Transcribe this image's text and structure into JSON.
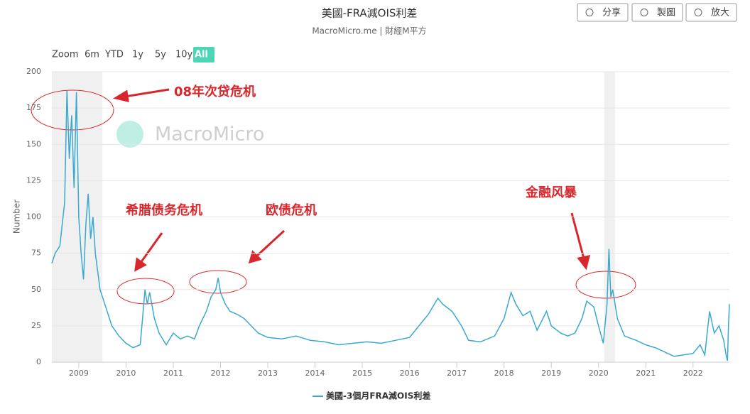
{
  "chart_data": {
    "type": "line",
    "title": "美國-FRA減OIS利差",
    "subtitle": "MacroMicro.me | 財經M平方",
    "watermark": "MacroMicro",
    "buttons": [
      "分享",
      "製圖",
      "放大"
    ],
    "zoom_label": "Zoom",
    "zoom_options": [
      "6m",
      "YTD",
      "1y",
      "5y",
      "10y",
      "All"
    ],
    "ylabel": "Number",
    "annotations": [
      "08年次贷危机",
      "希腊债务危机",
      "欧债危机",
      "金融风暴"
    ],
    "xlim": [
      2008.43,
      2022.77
    ],
    "xticks": [
      2009,
      2010,
      2011,
      2012,
      2013,
      2014,
      2015,
      2016,
      2017,
      2018,
      2019,
      2020,
      2021,
      2022
    ],
    "ylim": [
      0,
      200
    ],
    "yticks": [
      0,
      25,
      50,
      75,
      100,
      125,
      150,
      175,
      200
    ],
    "grid": true,
    "shaded_ranges": [
      [
        2008.43,
        2009.5
      ],
      [
        2020.12,
        2020.35
      ]
    ],
    "x": [
      2008.43,
      2008.5,
      2008.6,
      2008.7,
      2008.75,
      2008.8,
      2008.85,
      2008.9,
      2008.95,
      2009.0,
      2009.05,
      2009.1,
      2009.15,
      2009.2,
      2009.25,
      2009.3,
      2009.35,
      2009.45,
      2009.55,
      2009.7,
      2009.85,
      2010.0,
      2010.15,
      2010.3,
      2010.35,
      2010.4,
      2010.45,
      2010.5,
      2010.6,
      2010.7,
      2010.85,
      2011.0,
      2011.15,
      2011.3,
      2011.45,
      2011.55,
      2011.7,
      2011.8,
      2011.9,
      2011.95,
      2012.0,
      2012.1,
      2012.2,
      2012.35,
      2012.5,
      2012.65,
      2012.8,
      2013.0,
      2013.3,
      2013.6,
      2013.9,
      2014.2,
      2014.5,
      2014.8,
      2015.1,
      2015.4,
      2015.7,
      2016.0,
      2016.2,
      2016.4,
      2016.6,
      2016.7,
      2016.9,
      2017.1,
      2017.25,
      2017.5,
      2017.8,
      2018.0,
      2018.15,
      2018.25,
      2018.4,
      2018.55,
      2018.7,
      2018.9,
      2019.0,
      2019.2,
      2019.35,
      2019.5,
      2019.65,
      2019.75,
      2019.9,
      2020.0,
      2020.1,
      2020.18,
      2020.22,
      2020.26,
      2020.3,
      2020.4,
      2020.55,
      2020.8,
      2021.0,
      2021.2,
      2021.4,
      2021.6,
      2021.8,
      2022.0,
      2022.15,
      2022.25,
      2022.3,
      2022.35,
      2022.45,
      2022.55,
      2022.65,
      2022.7,
      2022.73,
      2022.75,
      2022.77
    ],
    "series": [
      {
        "name": "美國-3個月FRA減OIS利差",
        "color": "#3aa8cf",
        "values": [
          68,
          75,
          80,
          110,
          187,
          140,
          170,
          120,
          186,
          100,
          75,
          57,
          95,
          116,
          85,
          100,
          75,
          50,
          40,
          25,
          18,
          13,
          10,
          12,
          30,
          50,
          40,
          48,
          30,
          20,
          12,
          20,
          16,
          18,
          16,
          25,
          35,
          45,
          50,
          58,
          48,
          40,
          35,
          33,
          30,
          25,
          20,
          17,
          16,
          18,
          15,
          14,
          12,
          13,
          14,
          13,
          15,
          17,
          25,
          33,
          44,
          40,
          35,
          25,
          15,
          14,
          18,
          30,
          48,
          40,
          32,
          35,
          22,
          35,
          25,
          20,
          18,
          20,
          30,
          42,
          38,
          25,
          13,
          40,
          78,
          45,
          50,
          30,
          18,
          15,
          12,
          10,
          7,
          4,
          5,
          6,
          12,
          5,
          20,
          35,
          20,
          25,
          15,
          5,
          1,
          25,
          40
        ]
      }
    ]
  }
}
